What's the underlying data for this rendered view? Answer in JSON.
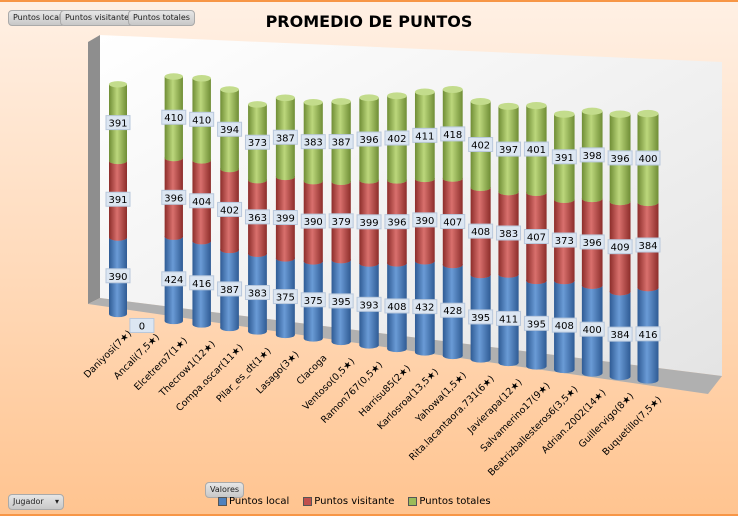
{
  "field_buttons": [
    "Puntos local",
    "Puntos visitante",
    "Puntos totales"
  ],
  "values_button": "Valores",
  "axis_field": {
    "label": "Jugador",
    "icon": "dropdown-arrow-icon"
  },
  "colors": {
    "local": "#4f81bd",
    "visitante": "#c0504d",
    "totales": "#9bbb59"
  },
  "chart_data": {
    "type": "bar",
    "stacked": true,
    "style": "3d-cylinder",
    "title": "PROMEDIO DE PUNTOS",
    "legend_position": "bottom",
    "categories": [
      "Daniyosi(7★)",
      "Ancali(7,5★)",
      "Elcetrero7(1★)",
      "Thecrow1(12★)",
      "Compa.oscar(11★)",
      "Pilar_es_dt(1★)",
      "Lasago(3★)",
      "Clacoga",
      "Ventoso(0,5★)",
      "Ramon767(0,5★)",
      "Harrisu85(2★)",
      "Karlosroa(13,5★)",
      "Yahowa(1,5★)",
      "Rita.lacantaora.731(6★)",
      "Javierapa(12★)",
      "Salvamerino17(9★)",
      "Beatrizballesteros6(3,5★)",
      "Adrian.2002(14★)",
      "Guillervigo(8★)",
      "Buquetillo(7,5★)"
    ],
    "series": [
      {
        "name": "Puntos local",
        "values": [
          390,
          0,
          424,
          416,
          387,
          383,
          375,
          375,
          395,
          393,
          408,
          432,
          428,
          395,
          411,
          395,
          408,
          400,
          384,
          416
        ]
      },
      {
        "name": "Puntos visitante",
        "values": [
          391,
          null,
          396,
          404,
          402,
          363,
          399,
          390,
          379,
          399,
          396,
          390,
          407,
          408,
          383,
          407,
          373,
          396,
          409,
          384
        ]
      },
      {
        "name": "Puntos totales",
        "values": [
          391,
          null,
          410,
          410,
          394,
          373,
          387,
          383,
          387,
          396,
          402,
          411,
          418,
          402,
          397,
          401,
          391,
          398,
          396,
          400
        ]
      }
    ]
  }
}
